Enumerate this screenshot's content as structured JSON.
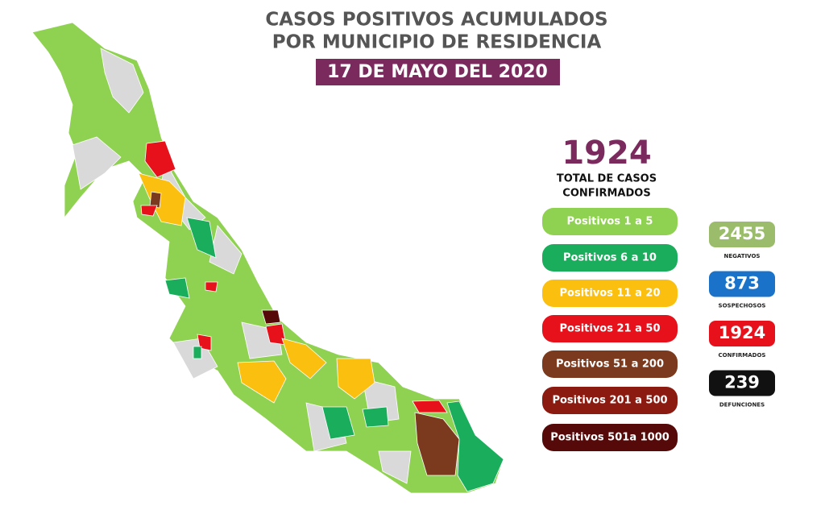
{
  "header": {
    "title": [
      "CASOS POSITIVOS ACUMULADOS",
      "POR MUNICIPIO DE RESIDENCIA"
    ],
    "date": "17 DE MAYO DEL 2020",
    "date_color": "#7b2a5e"
  },
  "total": {
    "number": 1924,
    "label": [
      "TOTAL DE CASOS",
      "CONFIRMADOS"
    ],
    "color": "#7b2a5e"
  },
  "legend": [
    {
      "label": "Positivos 1 a 5",
      "color": "#8fd150"
    },
    {
      "label": "Positivos 6 a 10",
      "color": "#1aae5c"
    },
    {
      "label": "Positivos 11 a 20",
      "color": "#fbbf10"
    },
    {
      "label": "Positivos 21 a 50",
      "color": "#e6111b"
    },
    {
      "label": "Positivos 51 a 200",
      "color": "#7b3a1d"
    },
    {
      "label": "Positivos 201 a 500",
      "color": "#8b1a10"
    },
    {
      "label": "Positivos 501a 1000",
      "color": "#560909"
    }
  ],
  "stats": [
    {
      "value": 2455,
      "label": "NEGATIVOS",
      "color": "#9bbd6b"
    },
    {
      "value": 873,
      "label": "SOSPECHOSOS",
      "color": "#1b73c9"
    },
    {
      "value": 1924,
      "label": "CONFIRMADOS",
      "color": "#e6111b"
    },
    {
      "value": 239,
      "label": "DEFUNCIONES",
      "color": "#111111"
    }
  ]
}
